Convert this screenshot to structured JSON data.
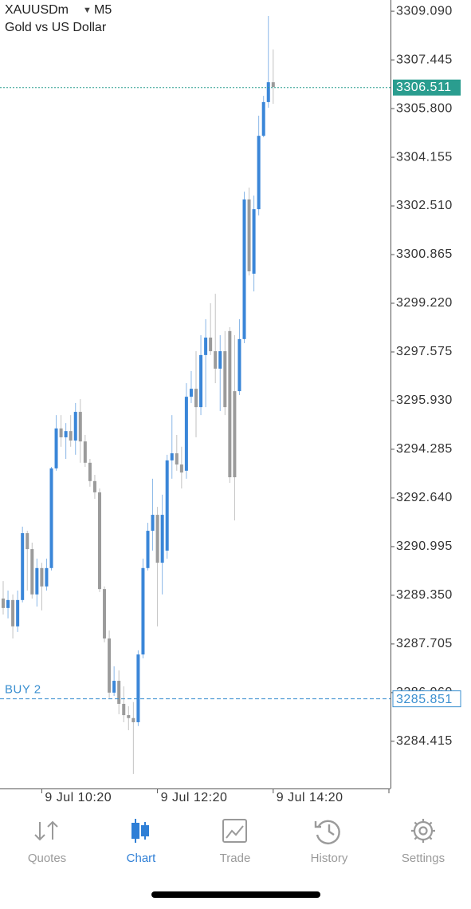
{
  "header": {
    "symbol": "XAUUSDm",
    "timeframe": "M5",
    "description": "Gold vs US Dollar"
  },
  "chart_data": {
    "type": "candlestick",
    "open": [
      3289.24,
      3288.92,
      3289.19,
      3288.3,
      3289.19,
      3291.45,
      3290.91,
      3289.38,
      3290.27,
      3289.65,
      3290.27,
      3293.64,
      3294.99,
      3294.69,
      3294.9,
      3294.58,
      3295.55,
      3294.55,
      3293.83,
      3293.21,
      3292.83,
      3289.56,
      3287.89,
      3286.06,
      3286.46,
      3285.68,
      3285.3,
      3285.2,
      3285.06,
      3287.35,
      3290.27,
      3291.53,
      3292.07,
      3290.45,
      3290.86,
      3293.91,
      3294.15,
      3293.77,
      3293.56,
      3296.06,
      3296.33,
      3295.71,
      3297.47,
      3298.06,
      3297.6,
      3297.01,
      3297.6,
      3298.28,
      3296.25,
      3296.25,
      3298.01,
      3302.73,
      3300.22,
      3302.4,
      3304.88,
      3306.02,
      3306.69
    ],
    "high": [
      3289.83,
      3289.51,
      3289.38,
      3289.51,
      3291.67,
      3291.53,
      3291.13,
      3290.59,
      3290.45,
      3290.59,
      3293.69,
      3295.44,
      3295.44,
      3295.17,
      3295.44,
      3295.85,
      3295.98,
      3294.77,
      3293.96,
      3293.42,
      3292.96,
      3289.65,
      3288.16,
      3286.95,
      3286.81,
      3286.27,
      3285.6,
      3285.74,
      3287.49,
      3290.59,
      3291.8,
      3293.29,
      3292.34,
      3292.75,
      3294.1,
      3295.44,
      3294.77,
      3294.37,
      3296.52,
      3296.93,
      3297.6,
      3298.14,
      3298.68,
      3299.22,
      3299.54,
      3298.14,
      3298.28,
      3298.41,
      3298.14,
      3298.68,
      3302.99,
      3303.13,
      3302.86,
      3305.56,
      3306.23,
      3308.93,
      3307.8
    ],
    "low": [
      3288.7,
      3288.57,
      3287.89,
      3288.11,
      3289.11,
      3289.51,
      3289.24,
      3288.97,
      3288.84,
      3289.51,
      3290.19,
      3293.56,
      3294.37,
      3293.96,
      3294.37,
      3294.1,
      3293.83,
      3293.69,
      3293.02,
      3292.61,
      3289.46,
      3287.76,
      3285.87,
      3285.95,
      3285.33,
      3285.06,
      3284.79,
      3283.31,
      3284.93,
      3287.22,
      3290.19,
      3290.86,
      3288.3,
      3289.38,
      3290.59,
      3293.29,
      3293.56,
      3292.96,
      3293.29,
      3295.85,
      3294.69,
      3295.44,
      3295.71,
      3297.47,
      3296.52,
      3295.58,
      3295.44,
      3293.15,
      3291.88,
      3296.12,
      3297.87,
      3300.16,
      3299.62,
      3302.19,
      3304.83,
      3305.83,
      3305.96
    ],
    "close": [
      3288.92,
      3289.19,
      3288.3,
      3289.19,
      3291.45,
      3290.91,
      3289.38,
      3290.27,
      3289.65,
      3290.27,
      3293.64,
      3294.99,
      3294.69,
      3294.9,
      3294.58,
      3295.55,
      3294.55,
      3293.83,
      3293.21,
      3292.83,
      3289.56,
      3287.89,
      3286.06,
      3286.46,
      3285.68,
      3285.3,
      3285.2,
      3285.06,
      3287.35,
      3290.27,
      3291.53,
      3292.07,
      3290.45,
      3292.07,
      3293.91,
      3294.15,
      3293.77,
      3293.5,
      3296.06,
      3296.33,
      3295.71,
      3297.47,
      3298.06,
      3297.6,
      3297.01,
      3297.6,
      3295.71,
      3293.34,
      3293.34,
      3298.01,
      3302.73,
      3300.3,
      3302.4,
      3304.88,
      3306.02,
      3306.69,
      3306.53
    ],
    "up_color": "#3a86d8",
    "down_color": "#9b9b9b",
    "ylim": [
      3282.82,
      3309.47
    ],
    "yticks": [
      {
        "value": 3309.09,
        "label": "3309.090"
      },
      {
        "value": 3307.445,
        "label": "3307.445"
      },
      {
        "value": 3305.8,
        "label": "3305.800"
      },
      {
        "value": 3304.155,
        "label": "3304.155"
      },
      {
        "value": 3302.51,
        "label": "3302.510"
      },
      {
        "value": 3300.865,
        "label": "3300.865"
      },
      {
        "value": 3299.22,
        "label": "3299.220"
      },
      {
        "value": 3297.575,
        "label": "3297.575"
      },
      {
        "value": 3295.93,
        "label": "3295.930"
      },
      {
        "value": 3294.285,
        "label": "3294.285"
      },
      {
        "value": 3292.64,
        "label": "3292.640"
      },
      {
        "value": 3290.995,
        "label": "3290.995"
      },
      {
        "value": 3289.35,
        "label": "3289.350"
      },
      {
        "value": 3287.705,
        "label": "3287.705"
      },
      {
        "value": 3286.06,
        "label": "3286.060"
      },
      {
        "value": 3284.415,
        "label": "3284.415"
      }
    ],
    "xlim": [
      -0.66,
      80.33
    ],
    "xticks": [
      {
        "value": 8,
        "label": "9 Jul 10:20"
      },
      {
        "value": 32,
        "label": "9 Jul 12:20"
      },
      {
        "value": 56,
        "label": "9 Jul 14:20"
      }
    ],
    "current_price": {
      "value": 3306.511,
      "label": "3306.511",
      "color": "#2a9d8f"
    },
    "order_line": {
      "name": "BUY 2",
      "value": 3285.851,
      "label": "3285.851",
      "color": "#3a8fd0"
    }
  },
  "nav": {
    "tabs": [
      "Quotes",
      "Chart",
      "Trade",
      "History",
      "Settings"
    ],
    "active": 1
  }
}
